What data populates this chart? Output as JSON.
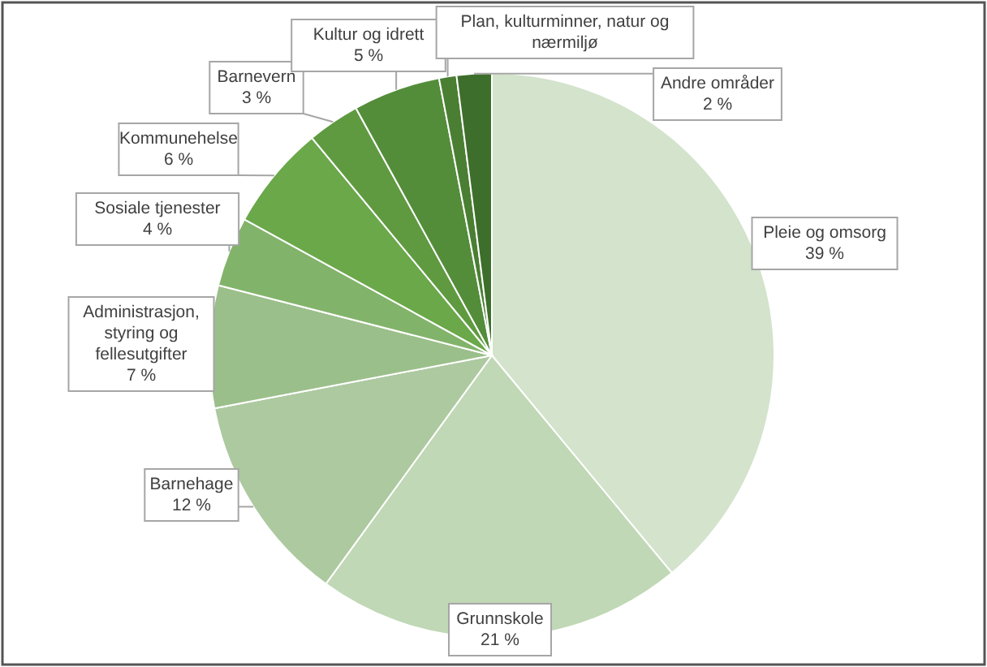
{
  "chart_data": {
    "type": "pie",
    "categories": [
      "Pleie og omsorg",
      "Grunnskole",
      "Barnehage",
      "Administrasjon, styring og fellesutgifter",
      "Sosiale tjenester",
      "Kommunehelse",
      "Barnevern",
      "Kultur og idrett",
      "Plan, kulturminner, natur og nærmiljø",
      "Andre områder"
    ],
    "values": [
      39,
      21,
      12,
      7,
      4,
      6,
      3,
      5,
      1,
      2
    ],
    "value_labels": [
      "39 %",
      "21 %",
      "12 %",
      "7 %",
      "4 %",
      "6 %",
      "3 %",
      "5 %",
      null,
      "2 %"
    ],
    "colors": [
      "#d3e3cc",
      "#c0d8b5",
      "#adc9a0",
      "#9bbf8a",
      "#82b36a",
      "#6aa84a",
      "#5f9a40",
      "#548d3a",
      "#4a7f33",
      "#3e6e2b"
    ]
  }
}
